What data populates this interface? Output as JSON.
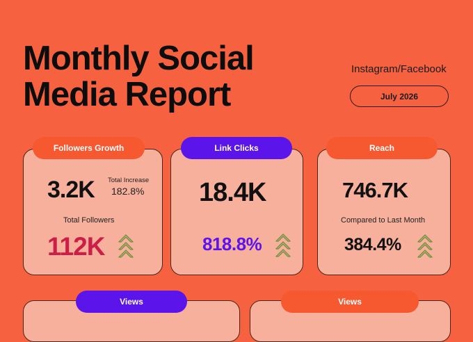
{
  "header": {
    "title_line1": "Monthly Social",
    "title_line2": "Media Report",
    "platforms": "Instagram/Facebook",
    "date": "July 2026"
  },
  "cards": {
    "followers": {
      "label": "Followers Growth",
      "value": "3.2K",
      "increase_label": "Total Increase",
      "increase_value": "182.8%",
      "total_label": "Total Followers",
      "total_value": "112K"
    },
    "link_clicks": {
      "label": "Link Clicks",
      "value": "18.4K",
      "change": "818.8%"
    },
    "reach": {
      "label": "Reach",
      "value": "746.7K",
      "compare_label": "Compared to Last Month",
      "change": "384.4%"
    },
    "views_left": {
      "label": "Views"
    },
    "views_right": {
      "label": "Views"
    }
  },
  "colors": {
    "background": "#f6623f",
    "card": "#f7b09c",
    "pill_orange": "#f6582f",
    "pill_purple": "#5b14ea",
    "followers_value": "#cc1f48",
    "link_change": "#5b14ea",
    "arrow_outline": "#6b8f3a"
  },
  "icons": {
    "growth": "triple-chevron-up-icon"
  }
}
